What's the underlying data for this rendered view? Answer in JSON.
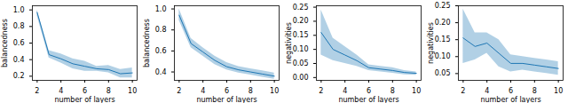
{
  "chart_data": [
    {
      "type": "line",
      "x_label": "number of layers",
      "y_label": "balancedness",
      "color": "#1f77b4",
      "grid": false,
      "x": [
        2,
        3,
        4,
        5,
        6,
        7,
        8,
        9,
        10
      ],
      "values": [
        0.97,
        0.46,
        0.41,
        0.35,
        0.32,
        0.29,
        0.28,
        0.23,
        0.24
      ],
      "lower": [
        0.93,
        0.42,
        0.36,
        0.29,
        0.26,
        0.26,
        0.24,
        0.18,
        0.18
      ],
      "upper": [
        1.0,
        0.51,
        0.47,
        0.41,
        0.38,
        0.32,
        0.33,
        0.28,
        0.3
      ],
      "xlim": [
        1.6,
        10.4
      ],
      "xticks": [
        2,
        4,
        6,
        8,
        10
      ],
      "ylim": [
        0.15,
        1.05
      ],
      "yticks": [
        0.2,
        0.4,
        0.6,
        0.8,
        {
          "value": 1.0,
          "label": "1.0"
        }
      ]
    },
    {
      "type": "line",
      "x_label": "number of layers",
      "y_label": "balancedness",
      "color": "#1f77b4",
      "grid": false,
      "x": [
        2,
        3,
        4,
        5,
        6,
        7,
        8,
        9,
        10
      ],
      "values": [
        0.94,
        0.67,
        0.59,
        0.51,
        0.45,
        0.42,
        0.4,
        0.38,
        0.36
      ],
      "lower": [
        0.89,
        0.63,
        0.55,
        0.47,
        0.42,
        0.39,
        0.37,
        0.35,
        0.33
      ],
      "upper": [
        1.0,
        0.72,
        0.63,
        0.55,
        0.49,
        0.45,
        0.43,
        0.41,
        0.39
      ],
      "xlim": [
        1.6,
        10.4
      ],
      "xticks": [
        2,
        4,
        6,
        8,
        10
      ],
      "ylim": [
        0.32,
        1.03
      ],
      "yticks": [
        0.4,
        0.6,
        0.8,
        {
          "value": 1.0,
          "label": "1.0"
        }
      ]
    },
    {
      "type": "line",
      "x_label": "number of layers",
      "y_label": "negativities",
      "color": "#1f77b4",
      "grid": false,
      "x": [
        2,
        3,
        4,
        5,
        6,
        7,
        8,
        9,
        10
      ],
      "values": [
        0.16,
        0.1,
        0.08,
        0.06,
        0.035,
        0.03,
        0.025,
        0.018,
        0.015
      ],
      "lower": [
        0.08,
        0.06,
        0.05,
        0.04,
        0.025,
        0.02,
        0.015,
        0.01,
        0.008
      ],
      "upper": [
        0.24,
        0.14,
        0.11,
        0.08,
        0.045,
        0.04,
        0.035,
        0.025,
        0.02
      ],
      "xlim": [
        1.6,
        10.4
      ],
      "xticks": [
        2,
        4,
        6,
        8,
        10
      ],
      "ylim": [
        -0.01,
        0.255
      ],
      "yticks": [
        {
          "value": 0,
          "label": "0.00"
        },
        0.05,
        {
          "value": 0.1,
          "label": "0.10"
        },
        0.15,
        {
          "value": 0.2,
          "label": "0.20"
        },
        0.25
      ]
    },
    {
      "type": "line",
      "x_label": "number of layers",
      "y_label": "negativities",
      "color": "#1f77b4",
      "grid": false,
      "x": [
        2,
        3,
        4,
        5,
        6,
        7,
        8,
        9,
        10
      ],
      "values": [
        0.155,
        0.13,
        0.14,
        0.11,
        0.08,
        0.08,
        0.075,
        0.07,
        0.065
      ],
      "lower": [
        0.08,
        0.09,
        0.11,
        0.07,
        0.055,
        0.06,
        0.055,
        0.05,
        0.045
      ],
      "upper": [
        0.24,
        0.17,
        0.17,
        0.15,
        0.105,
        0.1,
        0.095,
        0.09,
        0.085
      ],
      "xlim": [
        1.6,
        10.4
      ],
      "xticks": [
        2,
        4,
        6,
        8,
        10
      ],
      "ylim": [
        0.03,
        0.25
      ],
      "yticks": [
        0.05,
        {
          "value": 0.1,
          "label": "0.10"
        },
        0.15,
        {
          "value": 0.2,
          "label": "0.20"
        },
        0.25
      ]
    }
  ]
}
